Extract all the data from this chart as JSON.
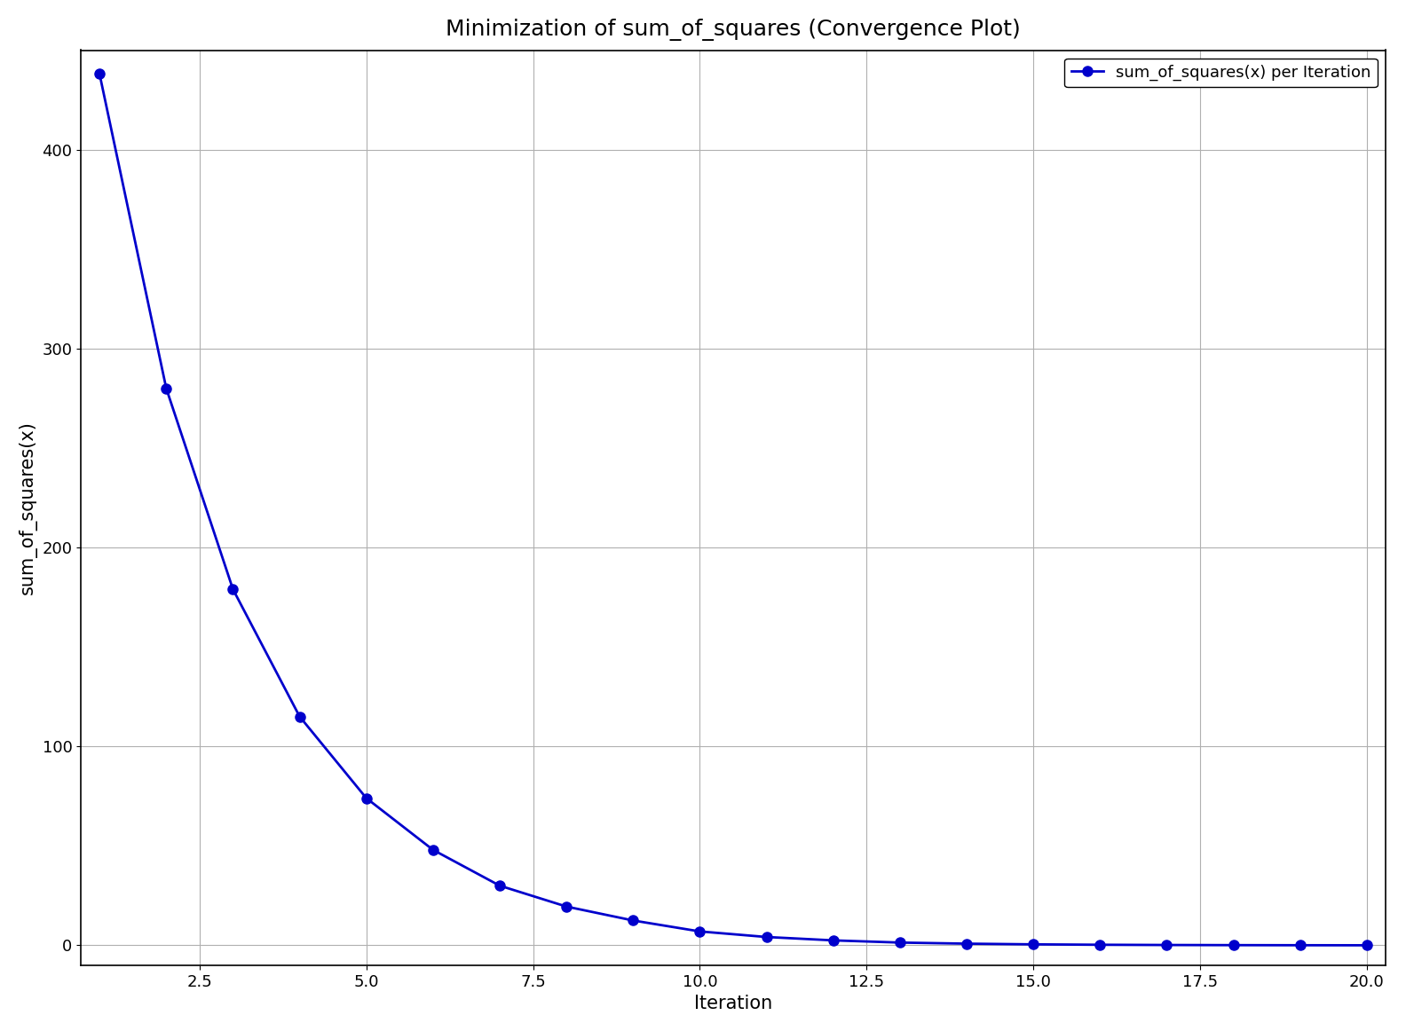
{
  "title": "Minimization of sum_of_squares (Convergence Plot)",
  "xlabel": "Iteration",
  "ylabel": "sum_of_squares(x)",
  "legend_label": "sum_of_squares(x) per Iteration",
  "line_color": "#0000cc",
  "marker": "o",
  "marker_color": "#0000cc",
  "background_color": "#ffffff",
  "grid_color": "#b0b0b0",
  "x_values": [
    1,
    2,
    3,
    4,
    5,
    6,
    7,
    8,
    9,
    10,
    11,
    12,
    13,
    14,
    15,
    16,
    17,
    18,
    19,
    20
  ],
  "y_values": [
    438.0,
    280.0,
    179.0,
    115.0,
    74.0,
    48.0,
    30.0,
    19.5,
    12.5,
    7.0,
    4.2,
    2.5,
    1.4,
    0.85,
    0.5,
    0.3,
    0.18,
    0.11,
    0.065,
    0.038
  ],
  "xlim": [
    0.72,
    20.28
  ],
  "ylim": [
    -10,
    450
  ],
  "yticks": [
    0,
    100,
    200,
    300,
    400
  ],
  "xticks": [
    2.5,
    5.0,
    7.5,
    10.0,
    12.5,
    15.0,
    17.5,
    20.0
  ],
  "title_fontsize": 18,
  "label_fontsize": 15,
  "tick_fontsize": 13,
  "legend_fontsize": 13,
  "line_width": 2.0,
  "marker_size": 8
}
